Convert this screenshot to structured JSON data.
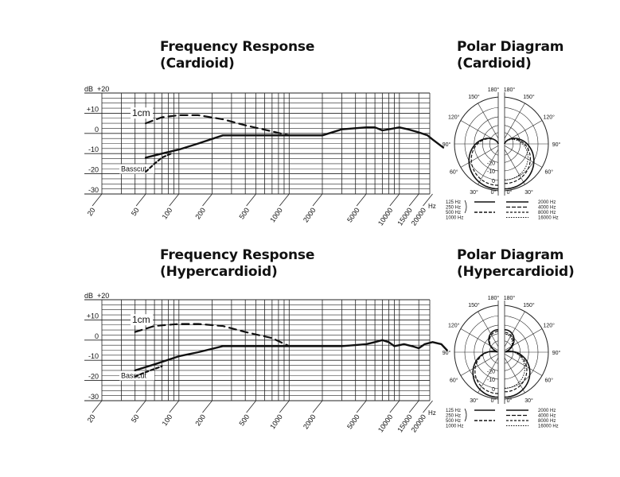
{
  "titles": {
    "freq_cardioid": [
      "Frequency Response",
      "(Cardioid)"
    ],
    "polar_cardioid": [
      "Polar Diagram",
      "(Cardioid)"
    ],
    "freq_hyper": [
      "Frequency Response",
      "(Hypercardioid)"
    ],
    "polar_hyper": [
      "Polar Diagram",
      "(Hypercardioid)"
    ]
  },
  "chart_data": [
    {
      "type": "line",
      "title": "Frequency Response (Cardioid)",
      "xscale": "log",
      "xlabel": "Hz",
      "ylabel": "dB",
      "x_ticks": [
        20,
        50,
        100,
        200,
        500,
        1000,
        2000,
        5000,
        10000,
        15000,
        20000
      ],
      "y_ticks": [
        "+20",
        "+10",
        "0",
        "-10",
        "-20",
        "-30"
      ],
      "ylim": [
        -30,
        20
      ],
      "grid": true,
      "annotations": [
        "1cm",
        "Basscut"
      ],
      "series": [
        {
          "name": "",
          "style": "solid",
          "points": [
            [
              50,
              -12
            ],
            [
              70,
              -10
            ],
            [
              100,
              -8
            ],
            [
              150,
              -5
            ],
            [
              250,
              -1
            ],
            [
              400,
              -1
            ],
            [
              700,
              -1
            ],
            [
              1000,
              -1
            ],
            [
              2000,
              -1
            ],
            [
              3000,
              2
            ],
            [
              5000,
              3
            ],
            [
              6000,
              3
            ],
            [
              7000,
              1.5
            ],
            [
              8000,
              2
            ],
            [
              10000,
              3
            ],
            [
              12000,
              2
            ],
            [
              15000,
              0.5
            ],
            [
              18000,
              -1
            ],
            [
              20000,
              -3
            ],
            [
              25000,
              -7
            ]
          ]
        },
        {
          "name": "1cm",
          "style": "dashed",
          "points": [
            [
              50,
              5
            ],
            [
              70,
              8
            ],
            [
              100,
              9
            ],
            [
              150,
              9
            ],
            [
              250,
              7
            ],
            [
              400,
              4
            ],
            [
              700,
              1
            ],
            [
              1000,
              -1
            ]
          ]
        },
        {
          "name": "Basscut",
          "style": "dashed",
          "points": [
            [
              50,
              -19
            ],
            [
              60,
              -15
            ],
            [
              70,
              -12
            ],
            [
              85,
              -10
            ]
          ]
        }
      ]
    },
    {
      "type": "polar",
      "title": "Polar Diagram (Cardioid)",
      "angle_labels": [
        "180°",
        "150°",
        "120°",
        "90°",
        "60°",
        "30°",
        "0°"
      ],
      "ring_labels": [
        "0",
        "-10",
        "-20"
      ],
      "legend_left": [
        "125 Hz",
        "250 Hz",
        "500 Hz",
        "1000 Hz"
      ],
      "legend_right": [
        "2000 Hz",
        "4000 Hz",
        "8000 Hz",
        "16000 Hz"
      ]
    },
    {
      "type": "line",
      "title": "Frequency Response (Hypercardioid)",
      "xscale": "log",
      "xlabel": "Hz",
      "ylabel": "dB",
      "x_ticks": [
        20,
        50,
        100,
        200,
        500,
        1000,
        2000,
        5000,
        10000,
        15000,
        20000
      ],
      "y_ticks": [
        "+20",
        "+10",
        "0",
        "-10",
        "-20",
        "-30"
      ],
      "ylim": [
        -30,
        20
      ],
      "grid": true,
      "annotations": [
        "1cm",
        "Basscut"
      ],
      "series": [
        {
          "name": "",
          "style": "solid",
          "points": [
            [
              40,
              -15
            ],
            [
              60,
              -12
            ],
            [
              100,
              -8
            ],
            [
              150,
              -6
            ],
            [
              250,
              -3
            ],
            [
              400,
              -3
            ],
            [
              700,
              -3
            ],
            [
              1000,
              -3
            ],
            [
              2000,
              -3
            ],
            [
              3000,
              -3
            ],
            [
              5000,
              -2
            ],
            [
              6000,
              -1
            ],
            [
              7000,
              0
            ],
            [
              8000,
              -1
            ],
            [
              9000,
              -3
            ],
            [
              11000,
              -2
            ],
            [
              13000,
              -3
            ],
            [
              15000,
              -4
            ],
            [
              17000,
              -2
            ],
            [
              20000,
              -1
            ],
            [
              24000,
              -2
            ],
            [
              27000,
              -5
            ]
          ]
        },
        {
          "name": "1cm",
          "style": "dashed",
          "points": [
            [
              40,
              4
            ],
            [
              60,
              7
            ],
            [
              100,
              8
            ],
            [
              150,
              8
            ],
            [
              250,
              7
            ],
            [
              400,
              4
            ],
            [
              700,
              1
            ],
            [
              1000,
              -3
            ]
          ]
        },
        {
          "name": "Basscut",
          "style": "dashed",
          "points": [
            [
              40,
              -18
            ],
            [
              55,
              -15
            ],
            [
              70,
              -13
            ]
          ]
        }
      ]
    },
    {
      "type": "polar",
      "title": "Polar Diagram (Hypercardioid)",
      "angle_labels": [
        "180°",
        "150°",
        "120°",
        "90°",
        "60°",
        "30°",
        "0°"
      ],
      "ring_labels": [
        "0",
        "-10",
        "-20"
      ],
      "legend_left": [
        "125 Hz",
        "250 Hz",
        "500 Hz",
        "1000 Hz"
      ],
      "legend_right": [
        "2000 Hz",
        "4000 Hz",
        "8000 Hz",
        "16000 Hz"
      ]
    }
  ]
}
